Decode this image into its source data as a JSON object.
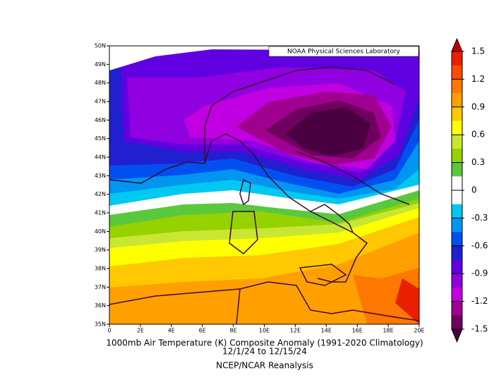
{
  "map": {
    "credit": "NOAA Physical Sciences Laboratory",
    "lat_labels": [
      "50N",
      "49N",
      "48N",
      "47N",
      "46N",
      "45N",
      "44N",
      "43N",
      "42N",
      "41N",
      "40N",
      "39N",
      "38N",
      "37N",
      "36N",
      "35N"
    ],
    "lon_labels": [
      "0",
      "2E",
      "4E",
      "6E",
      "8E",
      "10E",
      "12E",
      "14E",
      "16E",
      "18E",
      "20E"
    ]
  },
  "caption": {
    "title": "1000mb Air Temperature (K) Composite Anomaly (1991-2020 Climatology)",
    "dates": "12/1/24  to 12/15/24",
    "source": "NCEP/NCAR Reanalysis"
  },
  "colorbar": {
    "ticks": [
      1.5,
      1.2,
      0.9,
      0.6,
      0.3,
      0,
      -0.3,
      -0.6,
      -0.9,
      -1.2,
      -1.5
    ],
    "over_color": "#c00000",
    "under_color": "#4a0040",
    "colors": [
      "#e82000",
      "#ff4a00",
      "#ff7800",
      "#ffa000",
      "#ffc800",
      "#ffff00",
      "#c8e632",
      "#96d200",
      "#5ac83c",
      "#ffffff",
      "#ffffff",
      "#00c8f0",
      "#0096f0",
      "#0050f0",
      "#2020d0",
      "#6000e0",
      "#9000e0",
      "#c000e0",
      "#a00090",
      "#700060"
    ]
  }
}
